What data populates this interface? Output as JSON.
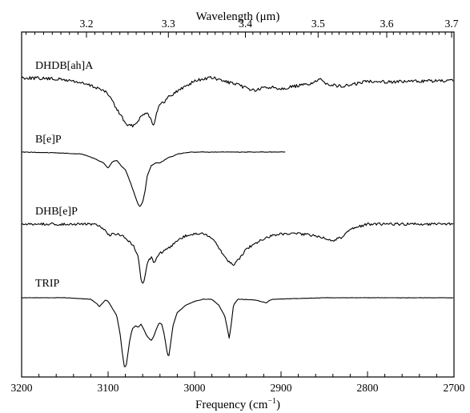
{
  "chart_data": {
    "type": "line",
    "xlabel": "Frequency (cm",
    "xlabel_superscript": "−1",
    "xlabel_close": ")",
    "x2label": "Wavelength (",
    "x2label_unit": "μm",
    "x2label_close": ")",
    "xlim": [
      3200,
      2700
    ],
    "x_reversed": true,
    "x_ticks": [
      3200,
      3100,
      3000,
      2900,
      2800,
      2700
    ],
    "x_tick_labels": [
      "3200",
      "3100",
      "3000",
      "2900",
      "2800",
      "2700"
    ],
    "x2_ticks": [
      3.2,
      3.3,
      3.4,
      3.5,
      3.6,
      3.7
    ],
    "x2_tick_labels": [
      "3.2",
      "3.3",
      "3.4",
      "3.5",
      "3.6",
      "3.7"
    ],
    "grid": false,
    "y_axis_labels": false,
    "legend": "none",
    "line_color": "#000000",
    "series": [
      {
        "name": "DHDB[ah]A",
        "x": [
          3200,
          3180,
          3160,
          3140,
          3125,
          3110,
          3100,
          3095,
          3090,
          3085,
          3080,
          3075,
          3070,
          3065,
          3060,
          3055,
          3050,
          3047,
          3044,
          3040,
          3035,
          3030,
          3020,
          3010,
          3000,
          2990,
          2980,
          2970,
          2960,
          2950,
          2940,
          2930,
          2920,
          2910,
          2900,
          2890,
          2880,
          2870,
          2860,
          2855,
          2850,
          2840,
          2830,
          2820,
          2810,
          2800,
          2790,
          2780,
          2760,
          2740,
          2720,
          2700
        ],
        "y": [
          0.0,
          0.01,
          0.02,
          0.05,
          0.1,
          0.16,
          0.24,
          0.34,
          0.47,
          0.55,
          0.68,
          0.71,
          0.7,
          0.62,
          0.55,
          0.5,
          0.62,
          0.72,
          0.5,
          0.4,
          0.36,
          0.28,
          0.2,
          0.12,
          0.05,
          0.02,
          0.0,
          0.04,
          0.07,
          0.11,
          0.15,
          0.19,
          0.15,
          0.14,
          0.16,
          0.14,
          0.12,
          0.1,
          0.06,
          0.03,
          0.07,
          0.11,
          0.13,
          0.11,
          0.08,
          0.05,
          0.05,
          0.06,
          0.06,
          0.05,
          0.05,
          0.05
        ]
      },
      {
        "name": "B[e]P",
        "x": [
          3200,
          3160,
          3130,
          3115,
          3105,
          3100,
          3095,
          3090,
          3085,
          3080,
          3075,
          3070,
          3065,
          3063,
          3060,
          3057,
          3055,
          3050,
          3045,
          3040,
          3035,
          3030,
          3025,
          3020,
          3015,
          3010,
          3005,
          3000,
          2990,
          2980,
          2970,
          2960,
          2950,
          2940,
          2930,
          2920,
          2910,
          2900,
          2895
        ],
        "y": [
          0.0,
          0.01,
          0.03,
          0.1,
          0.16,
          0.24,
          0.14,
          0.12,
          0.2,
          0.26,
          0.42,
          0.6,
          0.78,
          0.8,
          0.74,
          0.56,
          0.36,
          0.2,
          0.16,
          0.16,
          0.12,
          0.08,
          0.06,
          0.03,
          0.02,
          0.01,
          0.0,
          0.0,
          0.0,
          0.0,
          0.0,
          0.0,
          0.0,
          0.0,
          0.0,
          0.0,
          0.0,
          0.0,
          0.0
        ]
      },
      {
        "name": "DHB[e]P",
        "x": [
          3200,
          3180,
          3160,
          3140,
          3120,
          3110,
          3105,
          3100,
          3095,
          3090,
          3080,
          3075,
          3070,
          3065,
          3062,
          3060,
          3058,
          3055,
          3050,
          3047,
          3043,
          3040,
          3030,
          3020,
          3010,
          3000,
          2990,
          2980,
          2975,
          2970,
          2965,
          2960,
          2955,
          2950,
          2945,
          2940,
          2930,
          2920,
          2910,
          2900,
          2880,
          2860,
          2840,
          2830,
          2820,
          2800,
          2780,
          2760,
          2740,
          2720,
          2700
        ],
        "y": [
          0.0,
          0.0,
          0.0,
          0.0,
          0.0,
          0.02,
          0.06,
          0.14,
          0.12,
          0.12,
          0.16,
          0.22,
          0.28,
          0.4,
          0.66,
          0.74,
          0.7,
          0.48,
          0.4,
          0.48,
          0.4,
          0.36,
          0.3,
          0.2,
          0.14,
          0.12,
          0.12,
          0.16,
          0.24,
          0.32,
          0.4,
          0.46,
          0.5,
          0.44,
          0.38,
          0.3,
          0.24,
          0.18,
          0.14,
          0.12,
          0.12,
          0.14,
          0.2,
          0.16,
          0.06,
          0.0,
          0.0,
          0.0,
          0.0,
          0.0,
          0.0
        ]
      },
      {
        "name": "TRIP",
        "x": [
          3200,
          3150,
          3120,
          3113,
          3110,
          3107,
          3103,
          3100,
          3090,
          3086,
          3083,
          3081,
          3079,
          3077,
          3075,
          3072,
          3068,
          3065,
          3062,
          3059,
          3056,
          3053,
          3050,
          3047,
          3044,
          3041,
          3038,
          3035,
          3032,
          3030,
          3028,
          3025,
          3020,
          3010,
          3000,
          2990,
          2980,
          2972,
          2965,
          2962,
          2960,
          2958,
          2955,
          2950,
          2930,
          2920,
          2917,
          2914,
          2910,
          2880,
          2850,
          2800,
          2750,
          2700
        ],
        "y": [
          0.0,
          0.0,
          0.02,
          0.08,
          0.12,
          0.08,
          0.03,
          0.05,
          0.24,
          0.5,
          0.8,
          0.95,
          0.92,
          0.75,
          0.58,
          0.42,
          0.38,
          0.4,
          0.36,
          0.42,
          0.5,
          0.55,
          0.58,
          0.52,
          0.42,
          0.34,
          0.36,
          0.5,
          0.72,
          0.82,
          0.65,
          0.38,
          0.2,
          0.1,
          0.05,
          0.02,
          0.02,
          0.1,
          0.25,
          0.42,
          0.55,
          0.4,
          0.1,
          0.02,
          0.03,
          0.06,
          0.07,
          0.04,
          0.02,
          0.01,
          0.0,
          0.0,
          0.0,
          0.0
        ]
      }
    ]
  }
}
